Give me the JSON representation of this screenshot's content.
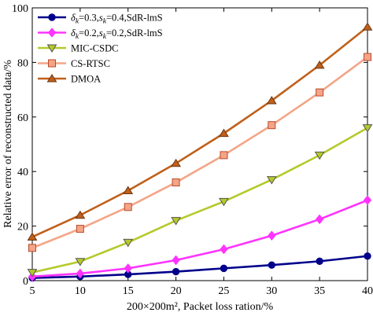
{
  "chart_data": {
    "type": "line",
    "xlabel": "200×200m², Packet loss ration/%",
    "ylabel": "Relative error of reconstructed data/%",
    "x": [
      5,
      10,
      15,
      20,
      25,
      30,
      35,
      40
    ],
    "xlim": [
      5,
      40
    ],
    "ylim": [
      0,
      100
    ],
    "xticks": [
      "5",
      "10",
      "15",
      "20",
      "25",
      "30",
      "35",
      "40"
    ],
    "yticks": [
      "0",
      "20",
      "40",
      "60",
      "80",
      "100"
    ],
    "legend_position": "top-left",
    "grid": false,
    "series": [
      {
        "name": "δk=0.3,sk=0.4,SdR-lmS",
        "legend_parts": [
          "δ",
          "k",
          "=0.3,",
          "s",
          "k",
          "=0.4,SdR-lmS"
        ],
        "values": [
          1.0,
          1.5,
          2.3,
          3.3,
          4.5,
          5.7,
          7.1,
          9.0
        ],
        "color": "#00008b",
        "marker": "circle"
      },
      {
        "name": "δk=0.2,sk=0.2,SdR-lmS",
        "legend_parts": [
          "δ",
          "k",
          "=0.2,",
          "s",
          "k",
          "=0.2,SdR-lmS"
        ],
        "values": [
          1.5,
          2.6,
          4.5,
          7.5,
          11.5,
          16.5,
          22.5,
          29.5
        ],
        "color": "#ff33ff",
        "marker": "diamond"
      },
      {
        "name": "MIC-CSDC",
        "values": [
          3.0,
          7.0,
          14.0,
          22.0,
          29.0,
          37.0,
          46.0,
          56.0
        ],
        "color": "#b5c92a",
        "marker": "triangle-down"
      },
      {
        "name": "CS-RTSC",
        "values": [
          12.0,
          19.0,
          27.0,
          36.0,
          46.0,
          57.0,
          69.0,
          82.0
        ],
        "color": "#f4a587",
        "marker": "square"
      },
      {
        "name": "DMOA",
        "values": [
          16.0,
          24.0,
          33.0,
          43.0,
          54.0,
          66.0,
          79.0,
          93.0
        ],
        "color": "#c0601a",
        "marker": "triangle-up"
      }
    ]
  }
}
